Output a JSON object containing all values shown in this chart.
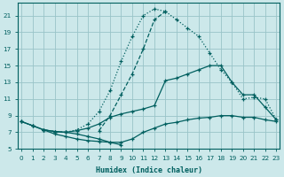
{
  "xlabel": "Humidex (Indice chaleur)",
  "bg_color": "#cce8ea",
  "grid_color": "#99c4c8",
  "line_color": "#005f5f",
  "xlim": [
    -0.3,
    23.3
  ],
  "ylim": [
    5,
    22.5
  ],
  "xticks": [
    0,
    1,
    2,
    3,
    4,
    5,
    6,
    7,
    8,
    9,
    10,
    11,
    12,
    13,
    14,
    15,
    16,
    17,
    18,
    19,
    20,
    21,
    22,
    23
  ],
  "yticks": [
    5,
    7,
    9,
    11,
    13,
    15,
    17,
    19,
    21
  ],
  "curve_peak_x": [
    0,
    1,
    2,
    3,
    4,
    5,
    6,
    7,
    8,
    9,
    10,
    11,
    12,
    13,
    14,
    15,
    16,
    17,
    18,
    19,
    20,
    21,
    22,
    23
  ],
  "curve_peak_y": [
    8.3,
    7.8,
    7.3,
    7.1,
    7.0,
    7.3,
    8.0,
    9.5,
    12.0,
    15.5,
    18.5,
    21.0,
    21.8,
    21.5,
    20.5,
    19.5,
    18.5,
    16.5,
    14.5,
    13.0,
    11.0,
    11.2,
    11.0,
    8.5
  ],
  "curve_dashed_x": [
    7,
    8,
    9,
    10,
    11,
    12,
    13
  ],
  "curve_dashed_y": [
    7.2,
    9.0,
    11.5,
    14.0,
    17.0,
    20.5,
    21.5
  ],
  "curve_diag1_x": [
    0,
    1,
    2,
    3,
    4,
    5,
    6,
    7,
    8,
    9,
    10,
    11,
    12,
    13,
    14,
    15,
    16,
    17,
    18,
    19,
    20,
    21,
    22,
    23
  ],
  "curve_diag1_y": [
    8.3,
    7.8,
    7.3,
    7.1,
    7.0,
    7.2,
    7.5,
    8.0,
    8.8,
    9.2,
    9.5,
    9.8,
    10.2,
    13.2,
    13.5,
    14.0,
    14.5,
    15.0,
    15.0,
    13.0,
    11.5,
    11.5,
    10.0,
    8.5
  ],
  "curve_flat_x": [
    0,
    1,
    2,
    3,
    4,
    5,
    6,
    7,
    8,
    9,
    10,
    11,
    12,
    13,
    14,
    15,
    16,
    17,
    18,
    19,
    20,
    21,
    22,
    23
  ],
  "curve_flat_y": [
    8.3,
    7.8,
    7.3,
    6.8,
    6.5,
    6.2,
    6.0,
    5.9,
    5.8,
    5.8,
    6.2,
    7.0,
    7.5,
    8.0,
    8.2,
    8.5,
    8.7,
    8.8,
    9.0,
    9.0,
    8.8,
    8.8,
    8.5,
    8.3
  ],
  "curve_wave_x": [
    2,
    3,
    4,
    5,
    6,
    7,
    8,
    9
  ],
  "curve_wave_y": [
    7.3,
    7.1,
    7.0,
    6.8,
    6.5,
    6.2,
    5.8,
    5.5
  ]
}
